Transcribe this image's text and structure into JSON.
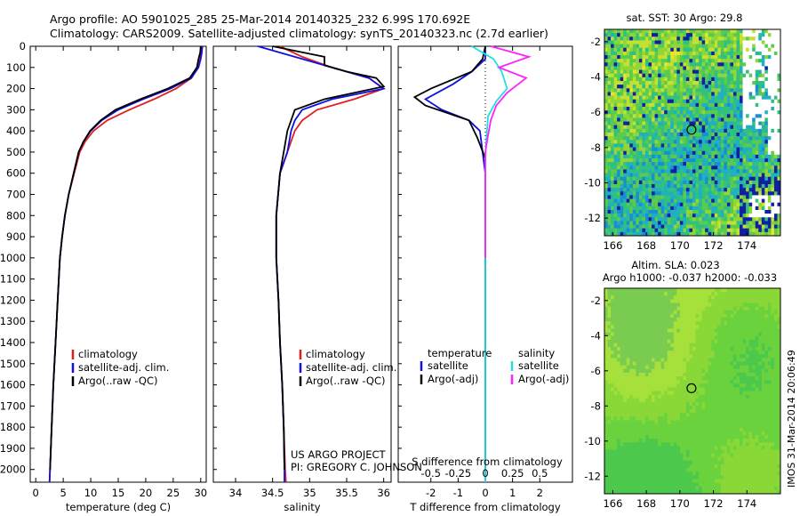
{
  "header": {
    "line1": "Argo profile: AO 5901025_285 25-Mar-2014 20140325_232 6.99S 170.692E",
    "line2": "Climatology: CARS2009. Satellite-adjusted climatology: synTS_20140323.nc (2.7d earlier)"
  },
  "credits": {
    "project": "US ARGO PROJECT",
    "pi": "PI: GREGORY C. JOHNSON"
  },
  "stamp": "IMOS 31-Mar-2014 20:06:49",
  "colors": {
    "climatology": "#e02020",
    "satellite": "#1010e0",
    "argo": "#000000",
    "sal_satellite": "#20e0e0",
    "sal_argo": "#ff20ff"
  },
  "chart_data": [
    {
      "type": "line",
      "name": "temperature-profile",
      "xlabel": "temperature (deg C)",
      "ylabel": "",
      "xlim": [
        -1,
        31
      ],
      "xticks": [
        0,
        5,
        10,
        15,
        20,
        25,
        30
      ],
      "ylim": [
        2060,
        0
      ],
      "yticks": [
        0,
        100,
        200,
        300,
        400,
        500,
        600,
        700,
        800,
        900,
        1000,
        1100,
        1200,
        1300,
        1400,
        1500,
        1600,
        1700,
        1800,
        1900,
        2000
      ],
      "legend": [
        "climatology",
        "satellite-adj. clim.",
        "Argo(..raw -QC)"
      ],
      "series": [
        {
          "name": "climatology",
          "color": "#e02020",
          "points": [
            [
              30.1,
              0
            ],
            [
              30.0,
              30
            ],
            [
              29.8,
              60
            ],
            [
              29.4,
              100
            ],
            [
              28.3,
              150
            ],
            [
              25.5,
              200
            ],
            [
              21.5,
              250
            ],
            [
              17.0,
              300
            ],
            [
              13.0,
              350
            ],
            [
              10.5,
              400
            ],
            [
              9.0,
              450
            ],
            [
              8.0,
              500
            ],
            [
              7.0,
              600
            ],
            [
              6.0,
              700
            ],
            [
              5.3,
              800
            ],
            [
              4.8,
              900
            ],
            [
              4.4,
              1000
            ],
            [
              4.0,
              1200
            ],
            [
              3.6,
              1400
            ],
            [
              3.2,
              1600
            ],
            [
              2.9,
              1800
            ],
            [
              2.6,
              2000
            ],
            [
              2.5,
              2060
            ]
          ]
        },
        {
          "name": "satellite-adj. clim.",
          "color": "#1010e0",
          "points": [
            [
              30.3,
              0
            ],
            [
              30.2,
              30
            ],
            [
              30.0,
              60
            ],
            [
              29.6,
              100
            ],
            [
              28.3,
              150
            ],
            [
              24.5,
              200
            ],
            [
              19.5,
              250
            ],
            [
              15.0,
              300
            ],
            [
              12.0,
              350
            ],
            [
              10.0,
              400
            ],
            [
              8.7,
              450
            ],
            [
              7.8,
              500
            ],
            [
              6.9,
              600
            ],
            [
              6.0,
              700
            ],
            [
              5.3,
              800
            ],
            [
              4.8,
              900
            ],
            [
              4.4,
              1000
            ],
            [
              4.0,
              1200
            ],
            [
              3.6,
              1400
            ],
            [
              3.2,
              1600
            ],
            [
              2.9,
              1800
            ],
            [
              2.6,
              2000
            ],
            [
              2.5,
              2060
            ]
          ]
        },
        {
          "name": "Argo(..raw -QC)",
          "color": "#000000",
          "points": [
            [
              30.0,
              0
            ],
            [
              29.9,
              30
            ],
            [
              29.6,
              60
            ],
            [
              29.3,
              100
            ],
            [
              28.0,
              150
            ],
            [
              24.0,
              200
            ],
            [
              19.0,
              250
            ],
            [
              14.5,
              300
            ],
            [
              11.8,
              350
            ],
            [
              9.9,
              400
            ],
            [
              8.7,
              450
            ],
            [
              7.8,
              500
            ],
            [
              6.9,
              600
            ],
            [
              6.0,
              700
            ],
            [
              5.3,
              800
            ],
            [
              4.8,
              900
            ],
            [
              4.4,
              1000
            ],
            [
              4.0,
              1200
            ],
            [
              3.6,
              1400
            ],
            [
              3.2,
              1600
            ],
            [
              2.9,
              1800
            ],
            [
              2.6,
              2000
            ]
          ]
        }
      ]
    },
    {
      "type": "line",
      "name": "salinity-profile",
      "xlabel": "salinity",
      "xlim": [
        33.7,
        36.1
      ],
      "xticks": [
        34,
        34.5,
        35,
        35.5,
        36
      ],
      "ylim": [
        2060,
        0
      ],
      "legend": [
        "climatology",
        "satellite-adj. clim.",
        "Argo(..raw -QC)"
      ],
      "series": [
        {
          "name": "climatology",
          "color": "#e02020",
          "points": [
            [
              34.6,
              0
            ],
            [
              34.9,
              50
            ],
            [
              35.3,
              100
            ],
            [
              35.8,
              150
            ],
            [
              36.0,
              200
            ],
            [
              35.6,
              250
            ],
            [
              35.1,
              300
            ],
            [
              34.9,
              350
            ],
            [
              34.8,
              400
            ],
            [
              34.7,
              500
            ],
            [
              34.6,
              600
            ],
            [
              34.55,
              800
            ],
            [
              34.55,
              1000
            ],
            [
              34.58,
              1200
            ],
            [
              34.6,
              1400
            ],
            [
              34.63,
              1600
            ],
            [
              34.65,
              1800
            ],
            [
              34.67,
              2000
            ],
            [
              34.68,
              2060
            ]
          ]
        },
        {
          "name": "satellite-adj. clim.",
          "color": "#1010e0",
          "points": [
            [
              34.3,
              0
            ],
            [
              34.8,
              50
            ],
            [
              35.3,
              100
            ],
            [
              35.8,
              150
            ],
            [
              36.0,
              200
            ],
            [
              35.3,
              250
            ],
            [
              34.9,
              300
            ],
            [
              34.8,
              350
            ],
            [
              34.75,
              400
            ],
            [
              34.7,
              500
            ],
            [
              34.6,
              600
            ],
            [
              34.55,
              800
            ],
            [
              34.55,
              1000
            ],
            [
              34.58,
              1200
            ],
            [
              34.6,
              1400
            ],
            [
              34.63,
              1600
            ],
            [
              34.65,
              1800
            ],
            [
              34.66,
              2000
            ],
            [
              34.66,
              2060
            ]
          ]
        },
        {
          "name": "Argo(..raw -QC)",
          "color": "#000000",
          "points": [
            [
              34.5,
              0
            ],
            [
              35.2,
              50
            ],
            [
              35.2,
              90
            ],
            [
              35.5,
              120
            ],
            [
              35.9,
              150
            ],
            [
              36.0,
              190
            ],
            [
              35.2,
              250
            ],
            [
              34.8,
              300
            ],
            [
              34.75,
              350
            ],
            [
              34.7,
              400
            ],
            [
              34.65,
              500
            ],
            [
              34.6,
              600
            ],
            [
              34.55,
              800
            ],
            [
              34.55,
              1000
            ],
            [
              34.58,
              1200
            ],
            [
              34.6,
              1400
            ],
            [
              34.63,
              1600
            ],
            [
              34.65,
              1800
            ],
            [
              34.66,
              2000
            ]
          ]
        }
      ]
    },
    {
      "type": "line",
      "name": "difference-from-climatology",
      "xlabel": "T difference from climatology",
      "xlabel2": "S difference from climatology",
      "xlim": [
        -3.2,
        3.2
      ],
      "xticks": [
        -2,
        -1,
        0,
        1,
        2
      ],
      "top_tick_labels": [
        "-0.5",
        "-0.25",
        "0",
        "0.25",
        "0.5"
      ],
      "ylim": [
        2060,
        0
      ],
      "legend_left_title": "temperature",
      "legend_right_title": "salinity",
      "legend": [
        "satellite",
        "Argo(-adj)",
        "satellite",
        "Argo(-adj)"
      ],
      "series": [
        {
          "name": "satellite",
          "quantity": "temperature",
          "color": "#1010e0",
          "points": [
            [
              0,
              0
            ],
            [
              0,
              60
            ],
            [
              -0.5,
              120
            ],
            [
              -1.2,
              180
            ],
            [
              -2.2,
              250
            ],
            [
              -1.6,
              300
            ],
            [
              -0.6,
              350
            ],
            [
              -0.2,
              400
            ],
            [
              -0.1,
              500
            ],
            [
              0,
              600
            ],
            [
              0,
              800
            ],
            [
              0,
              1000
            ],
            [
              0,
              1400
            ],
            [
              0,
              1800
            ],
            [
              0,
              2060
            ]
          ]
        },
        {
          "name": "Argo(-adj)",
          "quantity": "temperature",
          "color": "#000000",
          "points": [
            [
              0,
              0
            ],
            [
              -0.1,
              60
            ],
            [
              -0.5,
              120
            ],
            [
              -2.0,
              200
            ],
            [
              -2.6,
              240
            ],
            [
              -2.2,
              280
            ],
            [
              -0.6,
              350
            ],
            [
              -0.3,
              430
            ],
            [
              0,
              530
            ],
            [
              0,
              800
            ],
            [
              0,
              1200
            ],
            [
              0,
              1600
            ],
            [
              0,
              2000
            ]
          ]
        },
        {
          "name": "satellite",
          "quantity": "salinity",
          "color": "#20e0e0",
          "points": [
            [
              -0.5,
              0
            ],
            [
              0.3,
              60
            ],
            [
              0.6,
              120
            ],
            [
              0.8,
              200
            ],
            [
              0.4,
              260
            ],
            [
              0.1,
              330
            ],
            [
              0.05,
              420
            ],
            [
              0,
              520
            ],
            [
              0,
              800
            ],
            [
              0,
              1200
            ],
            [
              0,
              1600
            ],
            [
              0,
              2060
            ]
          ]
        },
        {
          "name": "Argo(-adj)",
          "quantity": "salinity",
          "color": "#ff20ff",
          "points": [
            [
              0.2,
              0
            ],
            [
              1.6,
              50
            ],
            [
              0.5,
              100
            ],
            [
              1.5,
              150
            ],
            [
              0.8,
              220
            ],
            [
              0.4,
              280
            ],
            [
              0.2,
              350
            ],
            [
              0.1,
              420
            ],
            [
              0,
              500
            ],
            [
              0,
              800
            ],
            [
              0,
              1000
            ]
          ]
        }
      ]
    },
    {
      "type": "heatmap",
      "name": "sst-map",
      "title": "sat. SST: 30  Argo: 29.8",
      "xlim": [
        165.5,
        176
      ],
      "xticks": [
        166,
        168,
        170,
        172,
        174
      ],
      "ylim": [
        -13,
        -1.3
      ],
      "yticks": [
        -2,
        -4,
        -6,
        -8,
        -10,
        -12
      ],
      "marker": {
        "lon": 170.692,
        "lat": -6.99
      },
      "palette": [
        "#1a8fd0",
        "#20b0c0",
        "#30c080",
        "#5acb4c",
        "#8ed63a",
        "#c4e030",
        "#e8e628"
      ],
      "missing_color": "#ffffff",
      "low_color": "#1020a0"
    },
    {
      "type": "heatmap",
      "name": "sla-map",
      "title": "Altim. SLA: 0.023",
      "subtitle": "Argo h1000: -0.037  h2000: -0.033",
      "xlim": [
        165.5,
        176
      ],
      "xticks": [
        166,
        168,
        170,
        172,
        174
      ],
      "ylim": [
        -13,
        -1.3
      ],
      "yticks": [
        -2,
        -4,
        -6,
        -8,
        -10,
        -12
      ],
      "marker": {
        "lon": 170.692,
        "lat": -6.99
      },
      "palette": [
        "#4cc84c",
        "#6ad23c",
        "#8ad838",
        "#a6e03a",
        "#7acc50",
        "#44b870",
        "#2aa890"
      ]
    }
  ]
}
